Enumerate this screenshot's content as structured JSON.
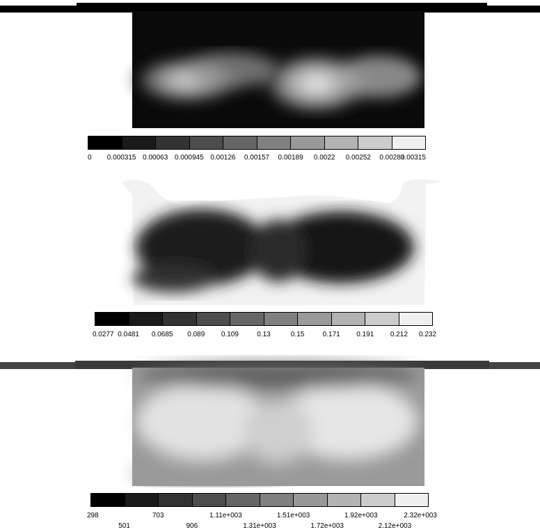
{
  "panels": [
    {
      "id": "panel-1",
      "colorbar": {
        "labels": [
          "0",
          "0.000315",
          "0.00063",
          "0.000945",
          "0.00126",
          "0.00157",
          "0.00189",
          "0.0022",
          "0.00252",
          "0.00283",
          "0.00315"
        ],
        "colors": [
          "#000000",
          "#1a1a1a",
          "#333333",
          "#4d4d4d",
          "#666666",
          "#808080",
          "#999999",
          "#b3b3b3",
          "#cccccc",
          "#e6e6e6"
        ]
      }
    },
    {
      "id": "panel-2",
      "colorbar": {
        "labels": [
          "0.0277",
          "0.0481",
          "0.0685",
          "0.089",
          "0.109",
          "0.13",
          "0.15",
          "0.171",
          "0.191",
          "0.212",
          "0.232"
        ],
        "colors": [
          "#000000",
          "#1a1a1a",
          "#333333",
          "#4d4d4d",
          "#666666",
          "#808080",
          "#999999",
          "#b3b3b3",
          "#cccccc",
          "#e6e6e6"
        ]
      }
    },
    {
      "id": "panel-3",
      "colorbar": {
        "labels_top": [
          "298",
          "703",
          "1.11e+003",
          "1.51e+003",
          "1.92e+003",
          "2.32e+003"
        ],
        "labels_bottom": [
          "501",
          "906",
          "1.31e+003",
          "1.72e+003",
          "2.12e+003"
        ],
        "colors": [
          "#000000",
          "#1a1a1a",
          "#333333",
          "#4d4d4d",
          "#666666",
          "#808080",
          "#999999",
          "#b3b3b3",
          "#cccccc",
          "#e6e6e6"
        ]
      }
    }
  ]
}
